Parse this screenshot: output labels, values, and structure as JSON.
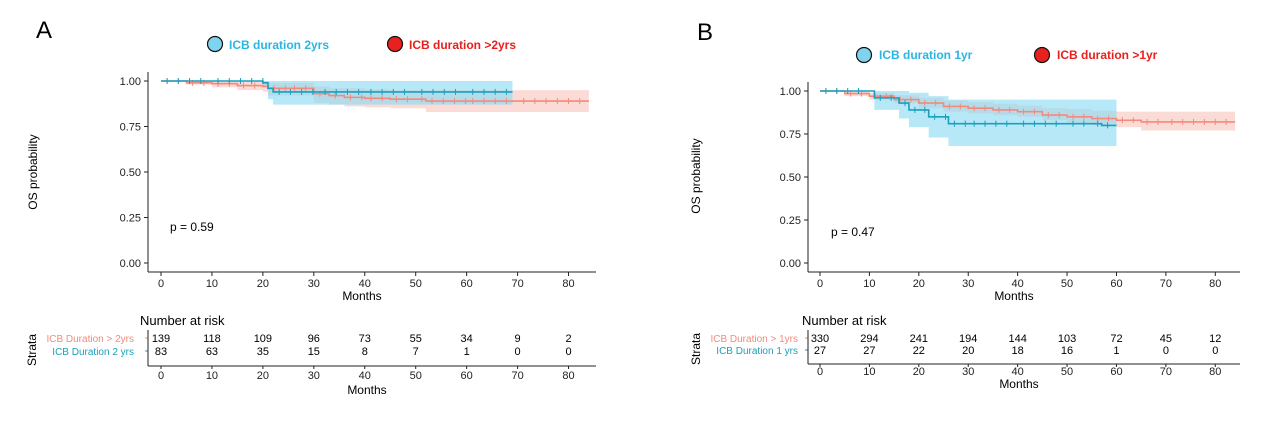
{
  "chart_data": [
    {
      "panel": "A",
      "type": "line",
      "xlabel": "Months",
      "ylabel": "OS probability",
      "xlim": [
        0,
        85
      ],
      "ylim": [
        0,
        1
      ],
      "x_ticks": [
        "0",
        "10",
        "20",
        "30",
        "40",
        "50",
        "60",
        "70",
        "80"
      ],
      "y_ticks": [
        "0.00",
        "0.25",
        "0.50",
        "0.75",
        "1.00"
      ],
      "pvalue": "p = 0.59",
      "legend": [
        {
          "label": "ICB duration 2yrs",
          "color": "#29b6e3",
          "fill": "#7fd3ee"
        },
        {
          "label": "ICB duration >2yrs",
          "color": "#e8201e",
          "fill": "#e8201e"
        }
      ],
      "series": [
        {
          "name": "ICB Duration > 2yrs",
          "color": "#f28b7d",
          "band": "#f9c7c0",
          "x": [
            0,
            5,
            10,
            15,
            20,
            21,
            25,
            30,
            33,
            36,
            40,
            45,
            50,
            52,
            60,
            70,
            84
          ],
          "y": [
            1.0,
            0.99,
            0.985,
            0.975,
            0.97,
            0.96,
            0.96,
            0.93,
            0.92,
            0.91,
            0.905,
            0.9,
            0.9,
            0.89,
            0.89,
            0.89,
            0.89
          ],
          "lower": [
            1.0,
            0.98,
            0.965,
            0.95,
            0.94,
            0.92,
            0.92,
            0.88,
            0.87,
            0.86,
            0.855,
            0.85,
            0.85,
            0.83,
            0.83,
            0.83,
            0.83
          ],
          "upper": [
            1.0,
            1.0,
            1.0,
            1.0,
            1.0,
            0.99,
            0.99,
            0.97,
            0.96,
            0.96,
            0.955,
            0.95,
            0.95,
            0.95,
            0.95,
            0.95,
            0.95
          ]
        },
        {
          "name": "ICB Duration 2 yrs",
          "color": "#1a9fbe",
          "band": "#8fdcf3",
          "x": [
            0,
            10,
            20,
            21,
            22,
            30,
            31,
            40,
            50,
            60,
            69
          ],
          "y": [
            1.0,
            1.0,
            0.99,
            0.96,
            0.94,
            0.94,
            0.94,
            0.94,
            0.94,
            0.94,
            0.94
          ],
          "lower": [
            1.0,
            1.0,
            0.97,
            0.9,
            0.87,
            0.87,
            0.87,
            0.87,
            0.87,
            0.87,
            0.87
          ],
          "upper": [
            1.0,
            1.0,
            1.0,
            1.0,
            1.0,
            1.0,
            1.0,
            1.0,
            1.0,
            1.0,
            1.0
          ]
        }
      ],
      "risk_table": {
        "title": "Number at risk",
        "strata_label": "Strata",
        "rows": [
          {
            "label": "ICB Duration > 2yrs",
            "color": "#f28b7d",
            "values": [
              "139",
              "118",
              "109",
              "96",
              "73",
              "55",
              "34",
              "9",
              "2"
            ]
          },
          {
            "label": "ICB Duration 2 yrs",
            "color": "#1a9fbe",
            "values": [
              "83",
              "63",
              "35",
              "15",
              "8",
              "7",
              "1",
              "0",
              "0"
            ]
          }
        ],
        "xlabel": "Months"
      }
    },
    {
      "panel": "B",
      "type": "line",
      "xlabel": "Months",
      "ylabel": "OS probability",
      "xlim": [
        0,
        85
      ],
      "ylim": [
        0,
        1
      ],
      "x_ticks": [
        "0",
        "10",
        "20",
        "30",
        "40",
        "50",
        "60",
        "70",
        "80"
      ],
      "y_ticks": [
        "0.00",
        "0.25",
        "0.50",
        "0.75",
        "1.00"
      ],
      "pvalue": "p = 0.47",
      "legend": [
        {
          "label": "ICB duration 1yr",
          "color": "#29b6e3",
          "fill": "#7fd3ee"
        },
        {
          "label": "ICB duration >1yr",
          "color": "#e8201e",
          "fill": "#e8201e"
        }
      ],
      "series": [
        {
          "name": "ICB Duration > 1yrs",
          "color": "#f28b7d",
          "band": "#f9c7c0",
          "x": [
            0,
            5,
            10,
            15,
            20,
            25,
            30,
            35,
            40,
            45,
            50,
            55,
            60,
            65,
            70,
            84
          ],
          "y": [
            1.0,
            0.985,
            0.97,
            0.95,
            0.93,
            0.91,
            0.9,
            0.89,
            0.88,
            0.86,
            0.85,
            0.84,
            0.83,
            0.82,
            0.82,
            0.82
          ],
          "lower": [
            1.0,
            0.97,
            0.95,
            0.93,
            0.9,
            0.88,
            0.87,
            0.86,
            0.85,
            0.83,
            0.81,
            0.8,
            0.79,
            0.77,
            0.77,
            0.77
          ],
          "upper": [
            1.0,
            1.0,
            0.99,
            0.975,
            0.96,
            0.945,
            0.935,
            0.925,
            0.915,
            0.9,
            0.895,
            0.885,
            0.88,
            0.88,
            0.88,
            0.88
          ]
        },
        {
          "name": "ICB Duration 1 yrs",
          "color": "#1a9fbe",
          "band": "#8fdcf3",
          "x": [
            0,
            10,
            11,
            16,
            18,
            20,
            22,
            26,
            30,
            40,
            50,
            55,
            57,
            60
          ],
          "y": [
            1.0,
            1.0,
            0.96,
            0.93,
            0.89,
            0.89,
            0.85,
            0.81,
            0.81,
            0.81,
            0.81,
            0.81,
            0.8,
            0.8
          ],
          "lower": [
            1.0,
            1.0,
            0.89,
            0.84,
            0.79,
            0.79,
            0.73,
            0.68,
            0.68,
            0.68,
            0.68,
            0.68,
            0.68,
            0.68
          ],
          "upper": [
            1.0,
            1.0,
            1.0,
            1.0,
            0.99,
            0.99,
            0.97,
            0.95,
            0.95,
            0.95,
            0.95,
            0.95,
            0.95,
            0.95
          ]
        }
      ],
      "risk_table": {
        "title": "Number at risk",
        "strata_label": "Strata",
        "rows": [
          {
            "label": "ICB Duration > 1yrs",
            "color": "#f28b7d",
            "values": [
              "330",
              "294",
              "241",
              "194",
              "144",
              "103",
              "72",
              "45",
              "12"
            ]
          },
          {
            "label": "ICB Duration 1 yrs",
            "color": "#1a9fbe",
            "values": [
              "27",
              "27",
              "22",
              "20",
              "18",
              "16",
              "1",
              "0",
              "0"
            ]
          }
        ],
        "xlabel": "Months"
      }
    }
  ]
}
